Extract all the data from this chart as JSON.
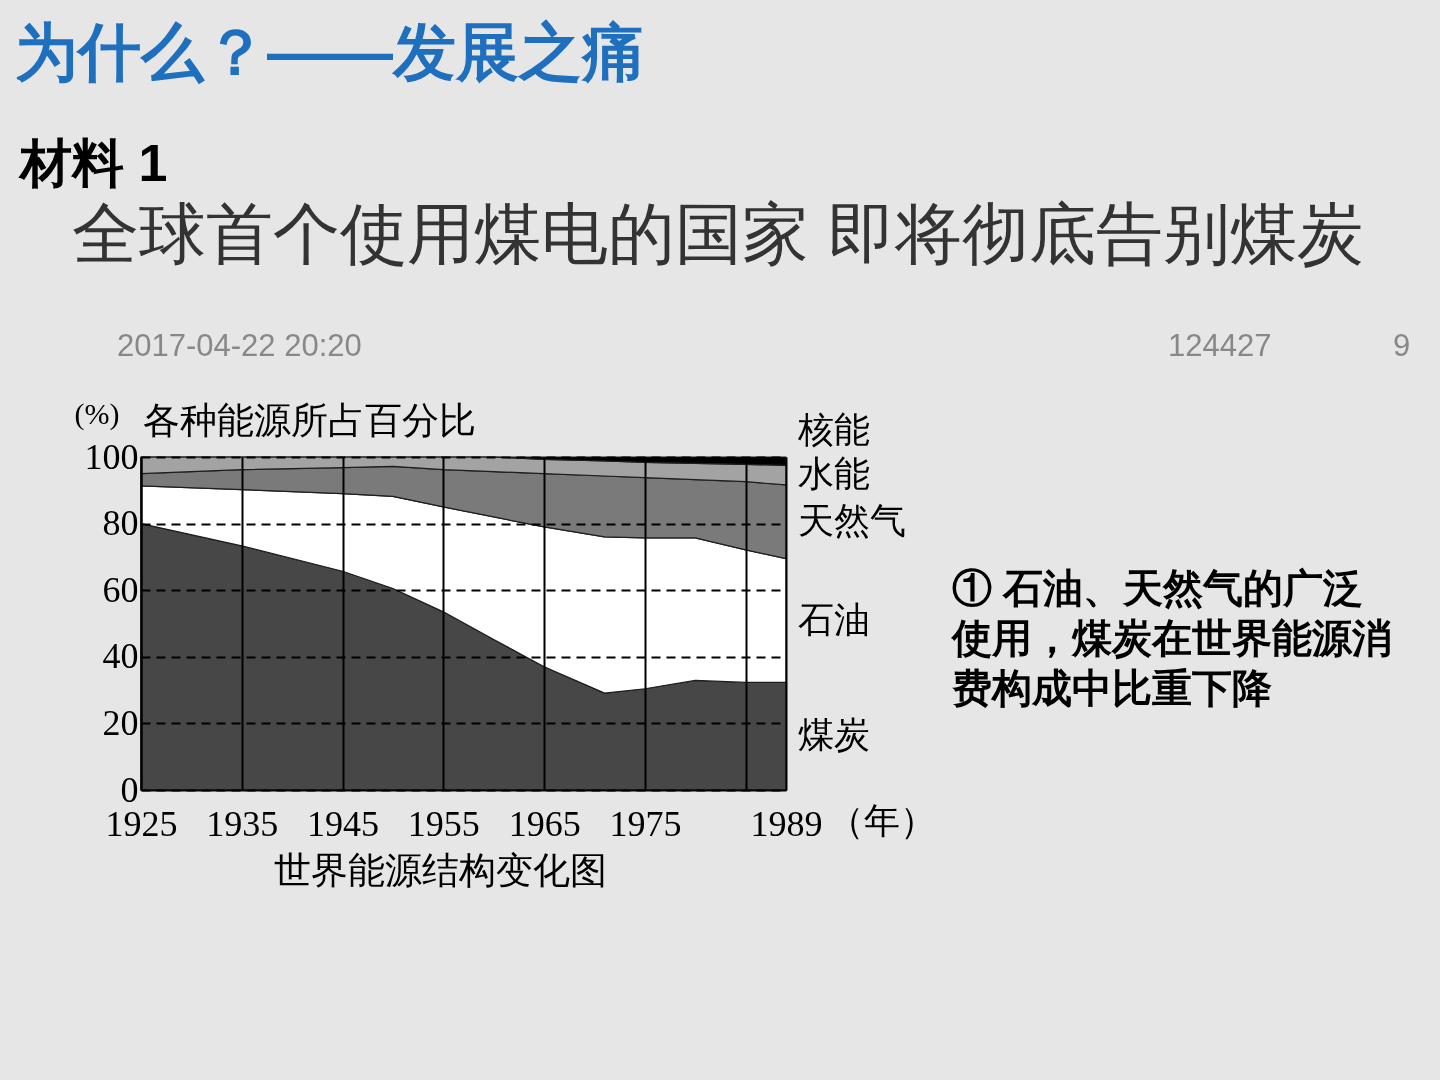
{
  "chart_data": {
    "type": "area",
    "title": "各种能源所占百分比",
    "ylabel": "(%)",
    "xlabel": "（年）",
    "x": [
      1925,
      1935,
      1945,
      1950,
      1955,
      1960,
      1965,
      1971,
      1975,
      1980,
      1985,
      1989
    ],
    "series": [
      {
        "name": "煤炭",
        "color": "#474747",
        "values": [
          80,
          73.3,
          65.7,
          60.5,
          53.5,
          45.2,
          37,
          29.1,
          30.4,
          32.9,
          32.3,
          32.3
        ]
      },
      {
        "name": "石油",
        "color": "#ffffff",
        "values": [
          11.3,
          16.9,
          23.3,
          27.7,
          31.5,
          36.8,
          42,
          46.9,
          45.3,
          42.8,
          39.8,
          37.2
        ]
      },
      {
        "name": "天然气",
        "color": "#7a7a7a",
        "values": [
          3.7,
          6,
          7.8,
          9,
          11.2,
          13.6,
          16,
          18.3,
          18.1,
          17.5,
          20.5,
          22.1
        ]
      },
      {
        "name": "水能",
        "color": "#a3a3a3",
        "values": [
          5,
          3.8,
          3.2,
          2.8,
          3.8,
          4.4,
          4.3,
          4.5,
          4.6,
          4.9,
          5.2,
          5.9
        ]
      },
      {
        "name": "核能",
        "color": "#000000",
        "values": [
          0,
          0,
          0,
          0,
          0,
          0,
          0.7,
          1.2,
          1.6,
          1.9,
          2.2,
          2.5
        ]
      }
    ],
    "stacked": true,
    "xlim": [
      1925,
      1989
    ],
    "ylim": [
      0,
      100
    ],
    "xticks": [
      1925,
      1935,
      1945,
      1955,
      1965,
      1975,
      {
        "value": 1985,
        "label": null
      },
      1989
    ],
    "yticks": [
      0,
      20,
      40,
      60,
      80,
      100
    ],
    "grid": true,
    "annotations": [
      "为什么？——发展之痛",
      "材料 1",
      "全球首个使用煤电的国家 即将彻底告别煤炭",
      "2017-04-22 20:20",
      "124427",
      "9",
      "① 石油、天然气的广泛使用，煤炭在世界能源消费构成中比重下降",
      "世界能源结构变化图"
    ]
  }
}
